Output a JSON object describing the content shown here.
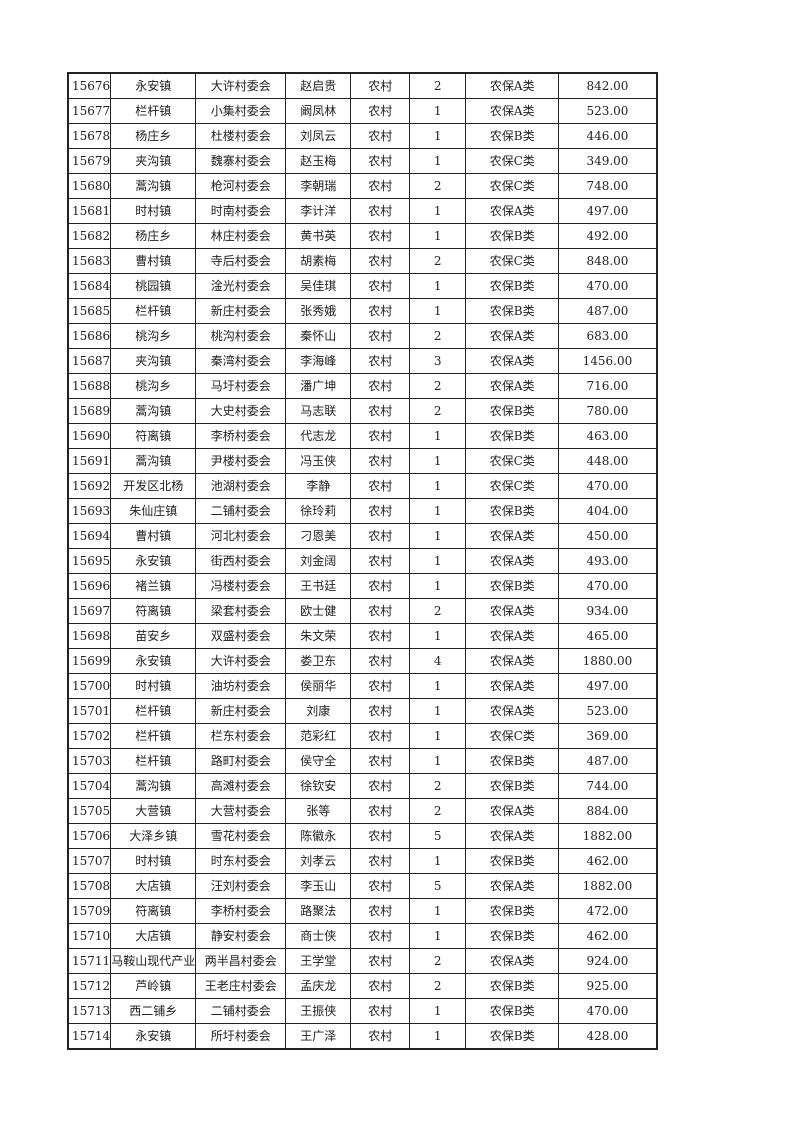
{
  "table": {
    "rows": [
      [
        "15676",
        "永安镇",
        "大许村委会",
        "赵启贵",
        "农村",
        "2",
        "农保A类",
        "842.00"
      ],
      [
        "15677",
        "栏杆镇",
        "小集村委会",
        "阚凤林",
        "农村",
        "1",
        "农保A类",
        "523.00"
      ],
      [
        "15678",
        "杨庄乡",
        "杜楼村委会",
        "刘凤云",
        "农村",
        "1",
        "农保B类",
        "446.00"
      ],
      [
        "15679",
        "夹沟镇",
        "魏寨村委会",
        "赵玉梅",
        "农村",
        "1",
        "农保C类",
        "349.00"
      ],
      [
        "15680",
        "蒿沟镇",
        "枪河村委会",
        "李朝瑞",
        "农村",
        "2",
        "农保C类",
        "748.00"
      ],
      [
        "15681",
        "时村镇",
        "时南村委会",
        "李计洋",
        "农村",
        "1",
        "农保A类",
        "497.00"
      ],
      [
        "15682",
        "杨庄乡",
        "林庄村委会",
        "黄书英",
        "农村",
        "1",
        "农保B类",
        "492.00"
      ],
      [
        "15683",
        "曹村镇",
        "寺后村委会",
        "胡素梅",
        "农村",
        "2",
        "农保C类",
        "848.00"
      ],
      [
        "15684",
        "桃园镇",
        "淦光村委会",
        "吴佳琪",
        "农村",
        "1",
        "农保B类",
        "470.00"
      ],
      [
        "15685",
        "栏杆镇",
        "新庄村委会",
        "张秀娥",
        "农村",
        "1",
        "农保B类",
        "487.00"
      ],
      [
        "15686",
        "桃沟乡",
        "桃沟村委会",
        "秦怀山",
        "农村",
        "2",
        "农保A类",
        "683.00"
      ],
      [
        "15687",
        "夹沟镇",
        "秦湾村委会",
        "李海峰",
        "农村",
        "3",
        "农保A类",
        "1456.00"
      ],
      [
        "15688",
        "桃沟乡",
        "马圩村委会",
        "潘广坤",
        "农村",
        "2",
        "农保A类",
        "716.00"
      ],
      [
        "15689",
        "蒿沟镇",
        "大史村委会",
        "马志联",
        "农村",
        "2",
        "农保B类",
        "780.00"
      ],
      [
        "15690",
        "符离镇",
        "李桥村委会",
        "代志龙",
        "农村",
        "1",
        "农保B类",
        "463.00"
      ],
      [
        "15691",
        "蒿沟镇",
        "尹楼村委会",
        "冯玉侠",
        "农村",
        "1",
        "农保C类",
        "448.00"
      ],
      [
        "15692",
        "开发区北杨",
        "池湖村委会",
        "李静",
        "农村",
        "1",
        "农保C类",
        "470.00"
      ],
      [
        "15693",
        "朱仙庄镇",
        "二铺村委会",
        "徐玲莉",
        "农村",
        "1",
        "农保B类",
        "404.00"
      ],
      [
        "15694",
        "曹村镇",
        "河北村委会",
        "刁恩美",
        "农村",
        "1",
        "农保A类",
        "450.00"
      ],
      [
        "15695",
        "永安镇",
        "街西村委会",
        "刘金阔",
        "农村",
        "1",
        "农保A类",
        "493.00"
      ],
      [
        "15696",
        "褚兰镇",
        "冯楼村委会",
        "王书廷",
        "农村",
        "1",
        "农保B类",
        "470.00"
      ],
      [
        "15697",
        "符离镇",
        "梁套村委会",
        "欧士健",
        "农村",
        "2",
        "农保A类",
        "934.00"
      ],
      [
        "15698",
        "苗安乡",
        "双盛村委会",
        "朱文荣",
        "农村",
        "1",
        "农保A类",
        "465.00"
      ],
      [
        "15699",
        "永安镇",
        "大许村委会",
        "娄卫东",
        "农村",
        "4",
        "农保A类",
        "1880.00"
      ],
      [
        "15700",
        "时村镇",
        "油坊村委会",
        "侯丽华",
        "农村",
        "1",
        "农保A类",
        "497.00"
      ],
      [
        "15701",
        "栏杆镇",
        "新庄村委会",
        "刘康",
        "农村",
        "1",
        "农保A类",
        "523.00"
      ],
      [
        "15702",
        "栏杆镇",
        "栏东村委会",
        "范彩红",
        "农村",
        "1",
        "农保C类",
        "369.00"
      ],
      [
        "15703",
        "栏杆镇",
        "路町村委会",
        "侯守全",
        "农村",
        "1",
        "农保B类",
        "487.00"
      ],
      [
        "15704",
        "蒿沟镇",
        "高滩村委会",
        "徐钦安",
        "农村",
        "2",
        "农保B类",
        "744.00"
      ],
      [
        "15705",
        "大营镇",
        "大营村委会",
        "张等",
        "农村",
        "2",
        "农保A类",
        "884.00"
      ],
      [
        "15706",
        "大泽乡镇",
        "雪花村委会",
        "陈徽永",
        "农村",
        "5",
        "农保A类",
        "1882.00"
      ],
      [
        "15707",
        "时村镇",
        "时东村委会",
        "刘孝云",
        "农村",
        "1",
        "农保B类",
        "462.00"
      ],
      [
        "15708",
        "大店镇",
        "汪刘村委会",
        "李玉山",
        "农村",
        "5",
        "农保A类",
        "1882.00"
      ],
      [
        "15709",
        "符离镇",
        "李桥村委会",
        "路聚法",
        "农村",
        "1",
        "农保B类",
        "472.00"
      ],
      [
        "15710",
        "大店镇",
        "静安村委会",
        "商士侠",
        "农村",
        "1",
        "农保B类",
        "462.00"
      ],
      [
        "15711",
        "马鞍山现代产业",
        "两半昌村委会",
        "王学堂",
        "农村",
        "2",
        "农保A类",
        "924.00"
      ],
      [
        "15712",
        "芦岭镇",
        "王老庄村委会",
        "孟庆龙",
        "农村",
        "2",
        "农保B类",
        "925.00"
      ],
      [
        "15713",
        "西二铺乡",
        "二铺村委会",
        "王振侠",
        "农村",
        "1",
        "农保B类",
        "470.00"
      ],
      [
        "15714",
        "永安镇",
        "所圩村委会",
        "王广泽",
        "农村",
        "1",
        "农保B类",
        "428.00"
      ]
    ]
  }
}
